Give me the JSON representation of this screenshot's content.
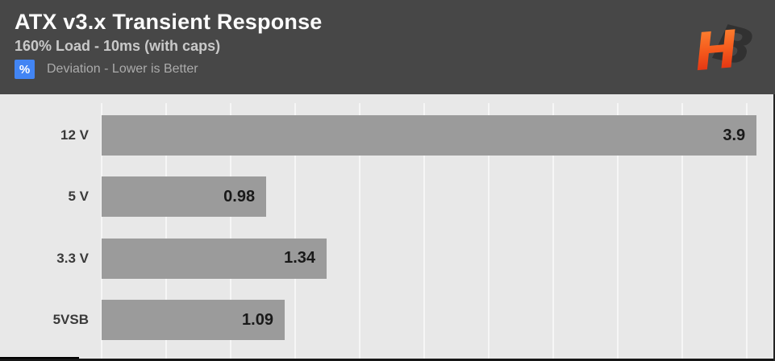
{
  "header": {
    "title": "ATX v3.x Transient Response",
    "subtitle": "160% Load - 10ms (with caps)",
    "legend": {
      "badge": "%",
      "label": "Deviation - Lower is Better"
    },
    "logo": {
      "h": "H",
      "b": "B"
    }
  },
  "colors": {
    "header_bg": "#474747",
    "chart_bg": "#e8e8e8",
    "bar_gray": "#9b9b9b",
    "badge_blue": "#4285f4",
    "logo_orange": "#ff8c36",
    "logo_red": "#d9200e",
    "logo_dark": "#313131"
  },
  "chart_data": {
    "type": "bar",
    "orientation": "horizontal",
    "title": "ATX v3.x Transient Response",
    "subtitle": "160% Load - 10ms (with caps)",
    "unit": "%",
    "note": "Deviation - Lower is Better",
    "categories": [
      "12 V",
      "5 V",
      "3.3 V",
      "5VSB"
    ],
    "values": [
      3.9,
      0.98,
      1.34,
      1.09
    ],
    "value_labels": [
      "3.9",
      "0.98",
      "1.34",
      "1.09"
    ],
    "xlim": [
      0,
      4.0
    ],
    "grid": true,
    "grid_intervals": 10,
    "legend_position": "none",
    "value_label_position": "inside-end"
  }
}
